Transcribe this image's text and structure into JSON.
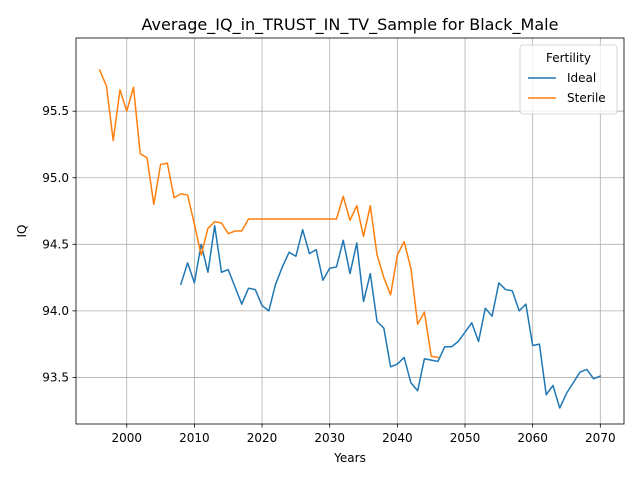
{
  "chart_data": {
    "type": "line",
    "title": "Average_IQ_in_TRUST_IN_TV_Sample for Black_Male",
    "xlabel": "Years",
    "ylabel": "IQ",
    "xlim": [
      1992.5,
      2073.5
    ],
    "ylim": [
      93.15,
      96.05
    ],
    "xticks": [
      2000,
      2010,
      2020,
      2030,
      2040,
      2050,
      2060,
      2070
    ],
    "xtick_labels": [
      "2000",
      "2010",
      "2020",
      "2030",
      "2040",
      "2050",
      "2060",
      "2070"
    ],
    "yticks": [
      93.5,
      94.0,
      94.5,
      95.0,
      95.5
    ],
    "ytick_labels": [
      "93.5",
      "94.0",
      "94.5",
      "95.0",
      "95.5"
    ],
    "grid": true,
    "legend": {
      "title": "Fertility",
      "placement": "upper right"
    },
    "series": [
      {
        "name": "Ideal",
        "color": "#1f77b4",
        "x": [
          2008,
          2009,
          2010,
          2011,
          2012,
          2013,
          2014,
          2015,
          2016,
          2017,
          2018,
          2019,
          2020,
          2021,
          2022,
          2023,
          2024,
          2025,
          2026,
          2027,
          2028,
          2029,
          2030,
          2031,
          2032,
          2033,
          2034,
          2035,
          2036,
          2037,
          2038,
          2039,
          2040,
          2041,
          2042,
          2043,
          2044,
          2045,
          2046,
          2047,
          2048,
          2049,
          2050,
          2051,
          2052,
          2053,
          2054,
          2055,
          2056,
          2057,
          2058,
          2059,
          2060,
          2061,
          2062,
          2063,
          2064,
          2065,
          2066,
          2067,
          2068,
          2069,
          2070
        ],
        "values": [
          94.2,
          94.36,
          94.21,
          94.5,
          94.29,
          94.64,
          94.29,
          94.31,
          94.18,
          94.05,
          94.17,
          94.16,
          94.04,
          94.0,
          94.2,
          94.33,
          94.44,
          94.41,
          94.61,
          94.43,
          94.46,
          94.23,
          94.32,
          94.33,
          94.53,
          94.28,
          94.51,
          94.07,
          94.28,
          93.92,
          93.87,
          93.58,
          93.6,
          93.65,
          93.46,
          93.4,
          93.64,
          93.63,
          93.62,
          93.73,
          93.73,
          93.77,
          93.84,
          93.91,
          93.77,
          94.02,
          93.96,
          94.21,
          94.16,
          94.15,
          94.0,
          94.05,
          93.74,
          93.75,
          93.37,
          93.44,
          93.27,
          93.38,
          93.46,
          93.54,
          93.56,
          93.49,
          93.51
        ]
      },
      {
        "name": "Sterile",
        "color": "#ff7f0e",
        "x": [
          1996,
          1997,
          1998,
          1999,
          2000,
          2001,
          2002,
          2003,
          2004,
          2005,
          2006,
          2007,
          2008,
          2009,
          2010,
          2011,
          2012,
          2013,
          2014,
          2015,
          2016,
          2017,
          2018,
          2019,
          2020,
          2021,
          2022,
          2023,
          2024,
          2025,
          2026,
          2027,
          2028,
          2029,
          2030,
          2031,
          2032,
          2033,
          2034,
          2035,
          2036,
          2037,
          2038,
          2039,
          2040,
          2041,
          2042,
          2043,
          2044,
          2045,
          2046
        ],
        "values": [
          95.81,
          95.69,
          95.28,
          95.66,
          95.5,
          95.68,
          95.18,
          95.15,
          94.8,
          95.1,
          95.11,
          94.85,
          94.88,
          94.87,
          94.65,
          94.42,
          94.62,
          94.67,
          94.66,
          94.58,
          94.6,
          94.6,
          94.69,
          94.69,
          94.69,
          94.69,
          94.69,
          94.69,
          94.69,
          94.69,
          94.69,
          94.69,
          94.69,
          94.69,
          94.69,
          94.69,
          94.86,
          94.68,
          94.79,
          94.56,
          94.79,
          94.42,
          94.25,
          94.12,
          94.42,
          94.52,
          94.32,
          93.9,
          93.99,
          93.66,
          93.65
        ]
      }
    ]
  }
}
